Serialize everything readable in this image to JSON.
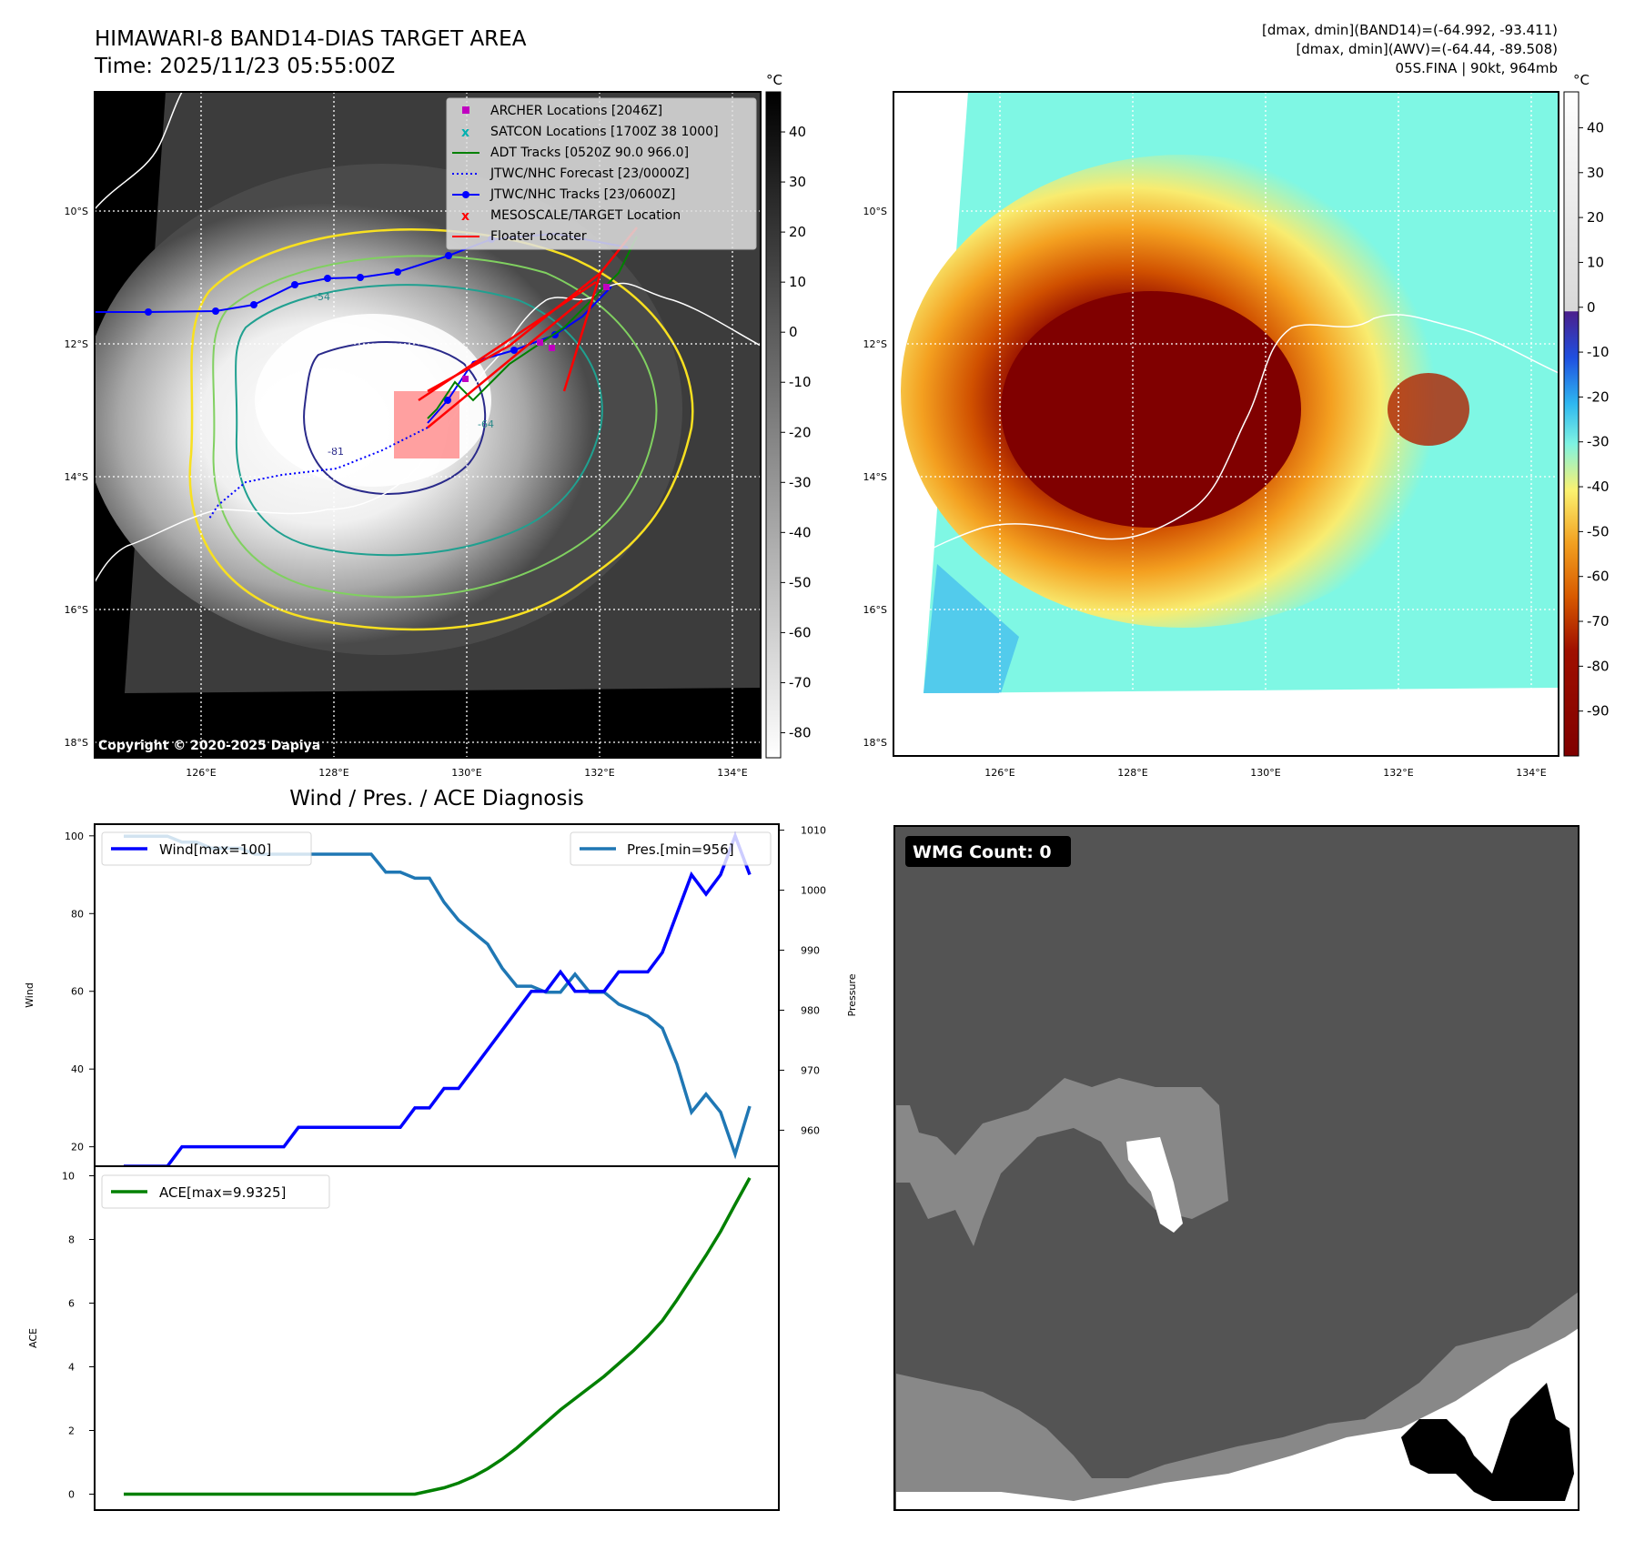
{
  "header": {
    "title_line1": "HIMAWARI-8 BAND14-DIAS TARGET AREA",
    "title_line2": "Time: 2025/11/23 05:55:00Z",
    "info_line1": "[dmax, dmin](BAND14)=(-64.992, -93.411)",
    "info_line2": "[dmax, dmin](AWV)=(-64.44, -89.508)",
    "info_line3": "05S.FINA | 90kt, 964mb"
  },
  "map": {
    "lat_labels": [
      "10°S",
      "12°S",
      "14°S",
      "16°S",
      "18°S"
    ],
    "lon_labels": [
      "126°E",
      "128°E",
      "130°E",
      "132°E",
      "134°E"
    ],
    "copyright": "Copyright © 2020-2025 Dapiya",
    "colorbar_unit": "°C",
    "contour_labels": [
      "-54",
      "-81",
      "-64"
    ],
    "legend": [
      {
        "label": "ARCHER Locations [2046Z]",
        "color": "#c000c0",
        "marker": "square"
      },
      {
        "label": "SATCON Locations [1700Z 38 1000]",
        "color": "#00b0b0",
        "marker": "x"
      },
      {
        "label": "ADT Tracks [0520Z 90.0 966.0]",
        "color": "#008000",
        "marker": "line"
      },
      {
        "label": "JTWC/NHC Forecast [23/0000Z]",
        "color": "#0000ff",
        "marker": "dotted"
      },
      {
        "label": "JTWC/NHC Tracks [23/0600Z]",
        "color": "#0000ff",
        "marker": "line-dot"
      },
      {
        "label": "MESOSCALE/TARGET Location",
        "color": "#ff0000",
        "marker": "x"
      },
      {
        "label": "Floater Locater",
        "color": "#ff0000",
        "marker": "line"
      }
    ]
  },
  "colorbar_gray": {
    "ticks": [
      40,
      30,
      20,
      10,
      0,
      -10,
      -20,
      -30,
      -40,
      -50,
      -60,
      -70,
      -80
    ],
    "unit": "°C"
  },
  "colorbar_color": {
    "ticks": [
      40,
      30,
      20,
      10,
      0,
      -10,
      -20,
      -30,
      -40,
      -50,
      -60,
      -70,
      -80,
      -90
    ],
    "unit": "°C"
  },
  "diagnosis_title": "Wind / Pres. / ACE Diagnosis",
  "wmg": {
    "label": "WMG Count: 0"
  },
  "chart_data": [
    {
      "type": "line",
      "title": "Wind / Pres. / ACE Diagnosis",
      "ylabel": "Wind",
      "y2label": "Pressure",
      "ylim": [
        15,
        103
      ],
      "y2lim": [
        954,
        1011
      ],
      "yticks": [
        20,
        40,
        60,
        80,
        100
      ],
      "y2ticks": [
        960,
        970,
        980,
        990,
        1000,
        1010
      ],
      "series": [
        {
          "name": "Wind[max=100]",
          "color": "#0000ff",
          "axis": "left",
          "values": [
            15,
            15,
            15,
            15,
            20,
            20,
            20,
            20,
            20,
            20,
            20,
            20,
            25,
            25,
            25,
            25,
            25,
            25,
            25,
            25,
            30,
            30,
            35,
            35,
            40,
            45,
            50,
            55,
            60,
            60,
            65,
            60,
            60,
            60,
            65,
            65,
            65,
            70,
            80,
            90,
            85,
            90,
            100,
            90
          ]
        },
        {
          "name": "Pres.[min=956]",
          "color": "#1f77b4",
          "axis": "right",
          "values": [
            1009,
            1009,
            1009,
            1009,
            1008,
            1008,
            1007,
            1007,
            1007,
            1006,
            1006,
            1006,
            1006,
            1006,
            1006,
            1006,
            1006,
            1006,
            1003,
            1003,
            1002,
            1002,
            998,
            995,
            993,
            991,
            987,
            984,
            984,
            983,
            983,
            986,
            983,
            983,
            981,
            980,
            979,
            977,
            971,
            963,
            966,
            963,
            956,
            964
          ]
        }
      ]
    },
    {
      "type": "line",
      "ylabel": "ACE",
      "ylim": [
        -0.5,
        10.3
      ],
      "yticks": [
        0,
        2,
        4,
        6,
        8,
        10
      ],
      "series": [
        {
          "name": "ACE[max=9.9325]",
          "color": "#008000",
          "axis": "left",
          "values": [
            0,
            0,
            0,
            0,
            0,
            0,
            0,
            0,
            0,
            0,
            0,
            0,
            0,
            0,
            0,
            0,
            0,
            0,
            0,
            0,
            0,
            0.1,
            0.2,
            0.35,
            0.55,
            0.8,
            1.1,
            1.45,
            1.85,
            2.25,
            2.65,
            3.0,
            3.35,
            3.7,
            4.1,
            4.5,
            4.95,
            5.45,
            6.1,
            6.8,
            7.5,
            8.25,
            9.1,
            9.9325
          ]
        }
      ]
    }
  ]
}
